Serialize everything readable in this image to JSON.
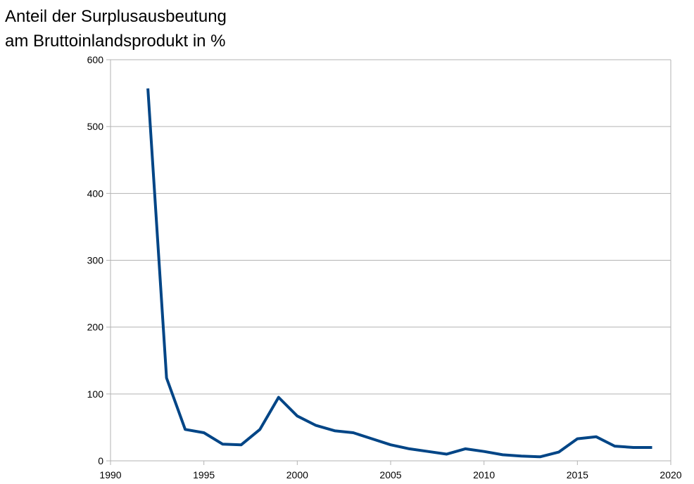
{
  "chart_data": {
    "type": "line",
    "title_lines": [
      "Anteil der Surplusausbeutung",
      "am Bruttoinlandsprodukt in %"
    ],
    "xlabel": "",
    "ylabel": "",
    "xlim": [
      1990,
      2020
    ],
    "ylim": [
      0,
      600
    ],
    "x_ticks": [
      1990,
      1995,
      2000,
      2005,
      2010,
      2015,
      2020
    ],
    "y_ticks": [
      0,
      100,
      200,
      300,
      400,
      500,
      600
    ],
    "grid": "horizontal",
    "legend": "none",
    "series": [
      {
        "color": "#004586",
        "x": [
          1992,
          1993,
          1994,
          1995,
          1996,
          1997,
          1998,
          1999,
          2000,
          2001,
          2002,
          2003,
          2004,
          2005,
          2006,
          2007,
          2008,
          2009,
          2010,
          2011,
          2012,
          2013,
          2014,
          2015,
          2016,
          2017,
          2018,
          2019
        ],
        "y": [
          557,
          124,
          47,
          42,
          25,
          24,
          47,
          95,
          67,
          53,
          45,
          42,
          33,
          24,
          18,
          14,
          10,
          18,
          14,
          9,
          7,
          6,
          13,
          33,
          36,
          22,
          20,
          20
        ]
      }
    ]
  }
}
